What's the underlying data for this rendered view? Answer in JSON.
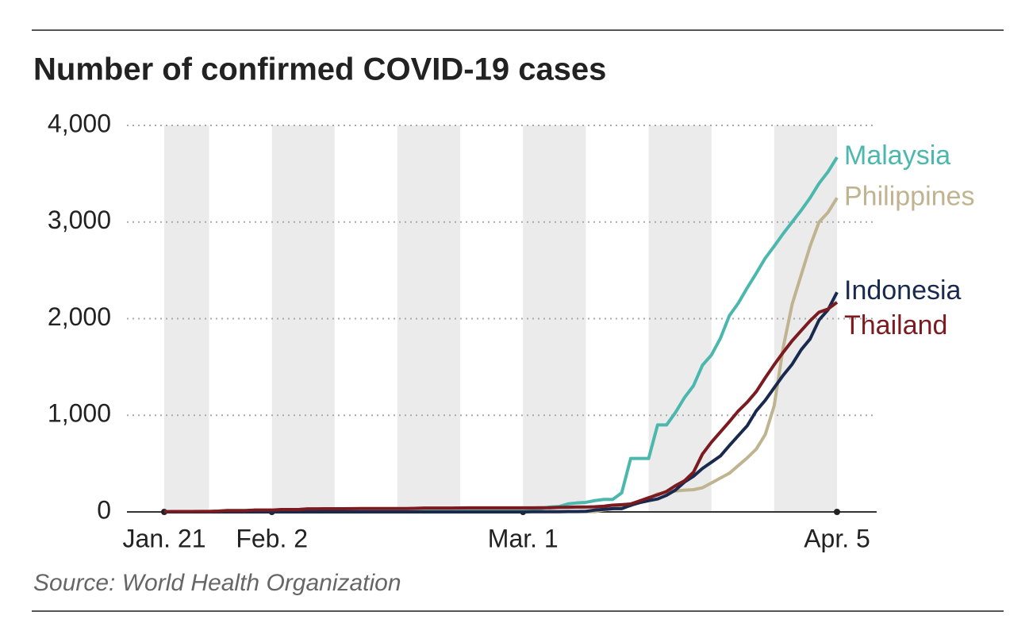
{
  "chart_data": {
    "type": "line",
    "title": "Number of confirmed COVID-19 cases",
    "source": "Source: World Health Organization",
    "categories": [
      "Jan. 21",
      null,
      null,
      null,
      null,
      null,
      null,
      null,
      null,
      null,
      null,
      null,
      "Feb. 2",
      null,
      null,
      null,
      null,
      null,
      null,
      null,
      null,
      null,
      null,
      null,
      null,
      null,
      null,
      null,
      null,
      null,
      null,
      null,
      null,
      null,
      null,
      null,
      null,
      null,
      null,
      null,
      "Mar. 1",
      null,
      null,
      null,
      null,
      null,
      null,
      null,
      null,
      null,
      null,
      null,
      null,
      null,
      null,
      null,
      null,
      null,
      null,
      null,
      null,
      null,
      null,
      null,
      null,
      null,
      null,
      null,
      null,
      null,
      null,
      null,
      null,
      null,
      null,
      "Apr. 5"
    ],
    "ylim": [
      0,
      4000
    ],
    "yticks": [
      0,
      {
        "value": 1000,
        "label": "1,000"
      },
      {
        "value": 2000,
        "label": "2,000"
      },
      {
        "value": 3000,
        "label": "3,000"
      },
      {
        "value": 4000,
        "label": "4,000"
      }
    ],
    "grid": true,
    "series": [
      {
        "name": "Malaysia",
        "color": "#4cb8ad",
        "values": [
          4,
          4,
          4,
          4,
          4,
          4,
          7,
          8,
          8,
          8,
          8,
          8,
          8,
          10,
          12,
          12,
          12,
          14,
          16,
          18,
          18,
          18,
          18,
          18,
          22,
          22,
          22,
          22,
          22,
          22,
          22,
          22,
          22,
          22,
          22,
          22,
          22,
          22,
          23,
          25,
          29,
          29,
          36,
          50,
          55,
          83,
          93,
          99,
          117,
          129,
          129,
          197,
          553,
          553,
          553,
          900,
          900,
          1030,
          1183,
          1306,
          1518,
          1624,
          1796,
          2031,
          2161,
          2320,
          2470,
          2626,
          2750,
          2880,
          3000,
          3120,
          3250,
          3400,
          3520,
          3670
        ]
      },
      {
        "name": "Philippines",
        "color": "#bfb48f",
        "values": [
          0,
          0,
          0,
          0,
          0,
          0,
          0,
          0,
          0,
          0,
          3,
          3,
          3,
          3,
          3,
          3,
          3,
          3,
          3,
          3,
          3,
          3,
          3,
          3,
          3,
          3,
          3,
          3,
          3,
          3,
          3,
          3,
          3,
          3,
          3,
          3,
          3,
          3,
          3,
          3,
          3,
          3,
          3,
          3,
          3,
          3,
          3,
          3,
          3,
          20,
          33,
          52,
          64,
          111,
          140,
          187,
          202,
          217,
          225,
          230,
          250,
          300,
          350,
          400,
          480,
          560,
          650,
          800,
          1100,
          1700,
          2150,
          2450,
          2750,
          3000,
          3100,
          3250
        ]
      },
      {
        "name": "Indonesia",
        "color": "#1a2a4f",
        "values": [
          0,
          0,
          0,
          0,
          0,
          0,
          0,
          0,
          0,
          0,
          0,
          0,
          0,
          0,
          0,
          0,
          0,
          0,
          0,
          0,
          0,
          0,
          0,
          0,
          0,
          0,
          0,
          0,
          0,
          0,
          0,
          0,
          0,
          0,
          0,
          0,
          0,
          0,
          0,
          0,
          0,
          2,
          2,
          2,
          2,
          4,
          4,
          6,
          19,
          27,
          34,
          34,
          69,
          96,
          117,
          134,
          172,
          227,
          309,
          369,
          450,
          514,
          579,
          686,
          790,
          893,
          1046,
          1155,
          1285,
          1414,
          1528,
          1677,
          1790,
          1986,
          2092,
          2273
        ]
      },
      {
        "name": "Thailand",
        "color": "#7b1a1f",
        "values": [
          2,
          4,
          4,
          4,
          5,
          5,
          8,
          14,
          14,
          14,
          19,
          19,
          19,
          25,
          25,
          25,
          32,
          32,
          33,
          33,
          33,
          34,
          35,
          35,
          35,
          35,
          35,
          35,
          37,
          40,
          40,
          40,
          40,
          41,
          42,
          42,
          42,
          42,
          42,
          42,
          42,
          42,
          43,
          43,
          47,
          48,
          50,
          50,
          53,
          59,
          70,
          75,
          82,
          114,
          147,
          177,
          212,
          272,
          322,
          411,
          599,
          721,
          827,
          934,
          1045,
          1136,
          1245,
          1388,
          1524,
          1651,
          1771,
          1875,
          1978,
          2067,
          2100,
          2169
        ]
      }
    ]
  }
}
